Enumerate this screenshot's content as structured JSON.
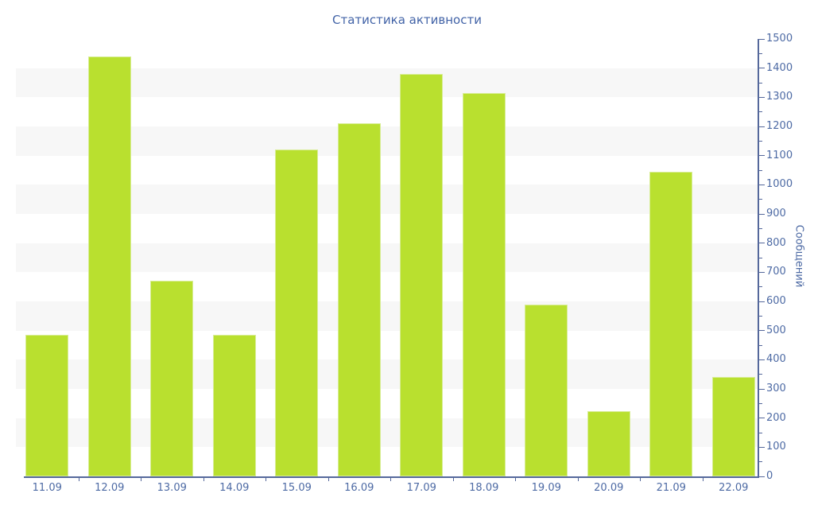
{
  "title": "Статистика активности",
  "colors": {
    "bar": "#b9e02f",
    "bar_border": "#d8ed96",
    "axis": "#55689b",
    "tick_text": "#4d6aa4",
    "title_text": "#4263a7",
    "stripe": "#f7f7f7",
    "background": "#ffffff"
  },
  "chart_data": {
    "type": "bar",
    "title": "Статистика активности",
    "xlabel": "",
    "ylabel": "Сообщений",
    "categories": [
      "11.09",
      "12.09",
      "13.09",
      "14.09",
      "15.09",
      "16.09",
      "17.09",
      "18.09",
      "19.09",
      "20.09",
      "21.09",
      "22.09"
    ],
    "values": [
      485,
      1440,
      670,
      485,
      1120,
      1210,
      1380,
      1315,
      590,
      225,
      1045,
      340
    ],
    "ylim": [
      0,
      1500
    ],
    "y_major_step": 100,
    "y_minor_step": 50,
    "y_tick_labels": [
      "0",
      "100",
      "200",
      "300",
      "400",
      "500",
      "600",
      "700",
      "800",
      "900",
      "1000",
      "1100",
      "1200",
      "1300",
      "1400",
      "1500"
    ],
    "y_axis_side": "right",
    "grid": "alternating-horizontal-bands",
    "legend_position": "none"
  }
}
